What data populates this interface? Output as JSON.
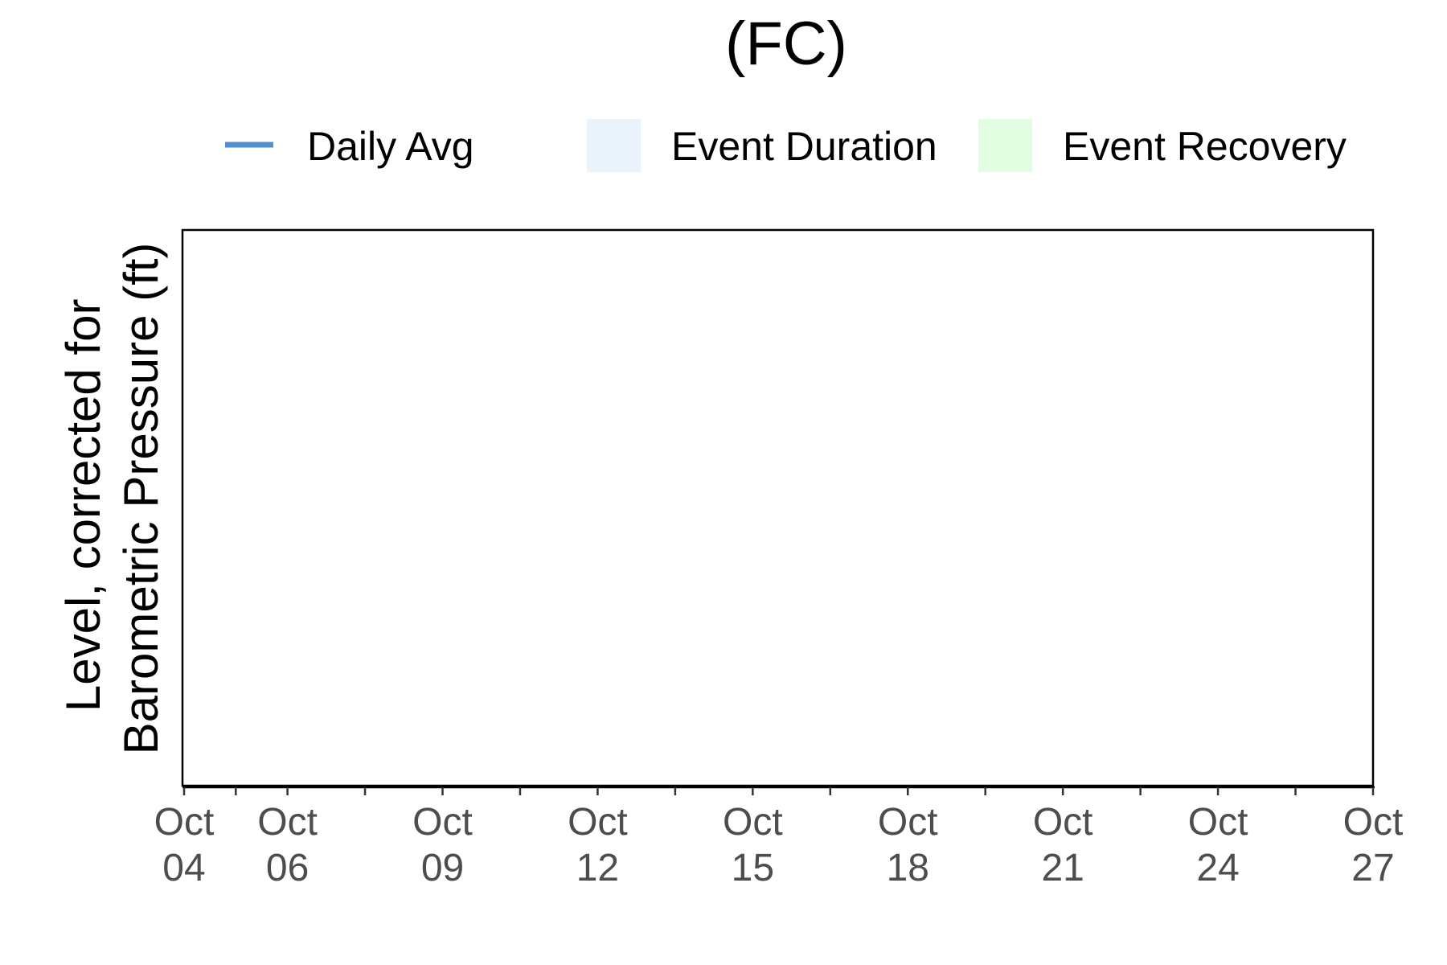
{
  "chart_data": {
    "type": "line",
    "title": "(FC)",
    "xlabel": "",
    "ylabel_lines": [
      "Level, corrected for",
      "Barometric Pressure (ft)"
    ],
    "x_axis": {
      "type": "date",
      "range": [
        "Oct 04",
        "Oct 27"
      ],
      "ticks": [
        {
          "month": "Oct",
          "day": "04",
          "date": "10-04"
        },
        {
          "month": "Oct",
          "day": "06",
          "date": "10-06"
        },
        {
          "month": "Oct",
          "day": "09",
          "date": "10-09"
        },
        {
          "month": "Oct",
          "day": "12",
          "date": "10-12"
        },
        {
          "month": "Oct",
          "day": "15",
          "date": "10-15"
        },
        {
          "month": "Oct",
          "day": "18",
          "date": "10-18"
        },
        {
          "month": "Oct",
          "day": "21",
          "date": "10-21"
        },
        {
          "month": "Oct",
          "day": "24",
          "date": "10-24"
        },
        {
          "month": "Oct",
          "day": "27",
          "date": "10-27"
        }
      ]
    },
    "grid": false,
    "legend_position": "top",
    "legend": [
      {
        "label": "Daily Avg",
        "kind": "line",
        "color": "#4f8fcb"
      },
      {
        "label": "Event Duration",
        "kind": "fill",
        "color": "#eaf2fb"
      },
      {
        "label": "Event Recovery",
        "kind": "fill",
        "color": "#e3fde3"
      }
    ],
    "series": [
      {
        "name": "Daily Avg",
        "x": [],
        "y": []
      }
    ]
  }
}
